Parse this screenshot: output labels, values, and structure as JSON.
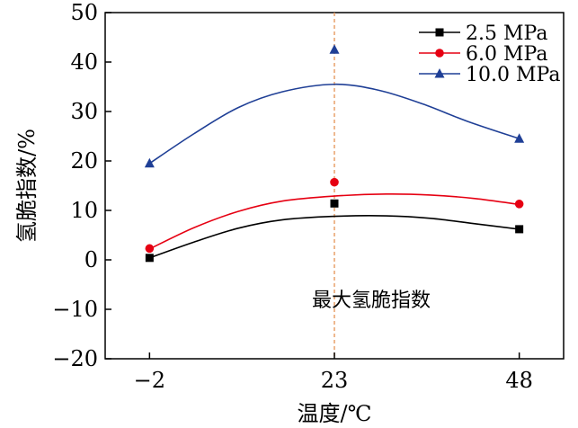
{
  "chart_data": {
    "type": "scatter",
    "title": "",
    "xlabel": "温度/℃",
    "ylabel": "氢脆指数/%",
    "categories": [
      "−2",
      "23",
      "48"
    ],
    "x": [
      -2,
      23,
      48
    ],
    "xlim": [
      -8,
      54
    ],
    "ylim": [
      -20,
      50
    ],
    "yticks": [
      -20,
      -10,
      0,
      10,
      20,
      30,
      40,
      50
    ],
    "ytick_labels": [
      "−20",
      "−10",
      "0",
      "10",
      "20",
      "30",
      "40",
      "50"
    ],
    "annotation": {
      "text": "最大氢脆指数",
      "x": 23,
      "style": "dashed vertical line"
    },
    "legend_position": "top-right",
    "series": [
      {
        "name": "2.5 MPa",
        "color": "#000000",
        "marker": "square",
        "values": [
          0.4,
          11.4,
          6.2
        ],
        "fit": [
          [
            -2,
            0.4
          ],
          [
            4,
            3.6
          ],
          [
            10,
            6.4
          ],
          [
            16,
            8.1
          ],
          [
            23,
            8.8
          ],
          [
            30,
            8.9
          ],
          [
            36,
            8.4
          ],
          [
            42,
            7.3
          ],
          [
            48,
            6.2
          ]
        ]
      },
      {
        "name": "6.0 MPa",
        "color": "#e60012",
        "marker": "circle",
        "values": [
          2.3,
          15.7,
          11.3
        ],
        "fit": [
          [
            -2,
            2.2
          ],
          [
            4,
            6.5
          ],
          [
            10,
            9.8
          ],
          [
            16,
            11.9
          ],
          [
            23,
            12.9
          ],
          [
            30,
            13.3
          ],
          [
            36,
            13.1
          ],
          [
            42,
            12.4
          ],
          [
            48,
            11.2
          ]
        ]
      },
      {
        "name": "10.0 MPa",
        "color": "#1f3f96",
        "marker": "triangle",
        "values": [
          19.5,
          42.5,
          24.5
        ],
        "fit": [
          [
            -2,
            19.5
          ],
          [
            4,
            25.5
          ],
          [
            10,
            30.8
          ],
          [
            16,
            34.0
          ],
          [
            23,
            35.5
          ],
          [
            29,
            34.3
          ],
          [
            35,
            31.5
          ],
          [
            41,
            28.0
          ],
          [
            48,
            24.5
          ]
        ]
      }
    ]
  }
}
